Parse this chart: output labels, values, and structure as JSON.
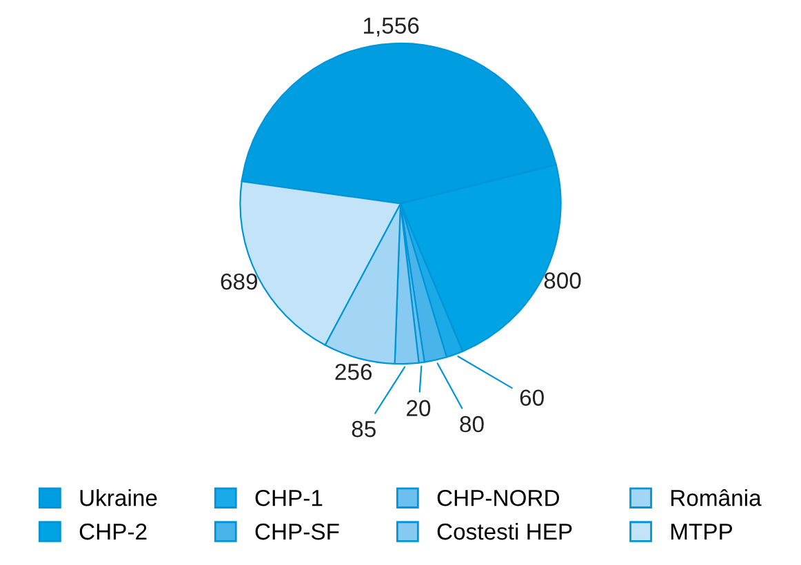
{
  "chart_data": {
    "type": "pie",
    "categories": [
      "Ukraine",
      "CHP-2",
      "CHP-1",
      "CHP-SF",
      "CHP-NORD",
      "Costesti HEP",
      "România",
      "MTPP"
    ],
    "values": [
      1556,
      800,
      60,
      80,
      20,
      85,
      256,
      689
    ],
    "value_labels": [
      "1,556",
      "800",
      "60",
      "80",
      "20",
      "85",
      "256",
      "689"
    ],
    "colors": [
      "#009ee0",
      "#00a3e4",
      "#1aaae8",
      "#48b4ea",
      "#6cc0ee",
      "#86caf1",
      "#a3d6f4",
      "#c3e4f8"
    ],
    "legend": "bottom"
  }
}
